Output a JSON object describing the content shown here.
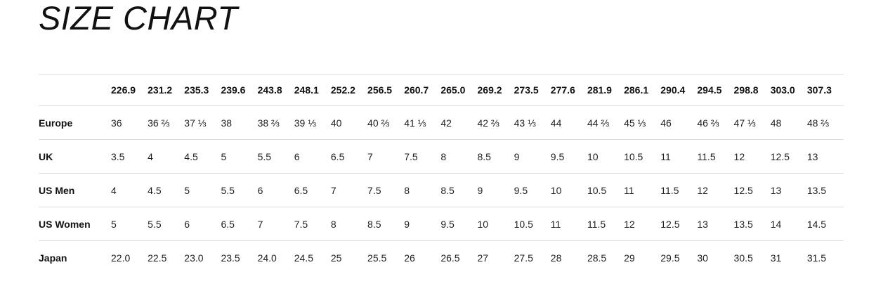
{
  "page": {
    "title": "SIZE CHART"
  },
  "table": {
    "corner_label": "",
    "columns": [
      "226.9",
      "231.2",
      "235.3",
      "239.6",
      "243.8",
      "248.1",
      "252.2",
      "256.5",
      "260.7",
      "265.0",
      "269.2",
      "273.5",
      "277.6",
      "281.9",
      "286.1",
      "290.4",
      "294.5",
      "298.8",
      "303.0",
      "307.3"
    ],
    "rows": [
      {
        "label": "Europe",
        "values": [
          "36",
          "36 ⅔",
          "37 ⅓",
          "38",
          "38 ⅔",
          "39 ⅓",
          "40",
          "40 ⅔",
          "41 ⅓",
          "42",
          "42 ⅔",
          "43 ⅓",
          "44",
          "44 ⅔",
          "45 ⅓",
          "46",
          "46 ⅔",
          "47 ⅓",
          "48",
          "48 ⅔"
        ]
      },
      {
        "label": "UK",
        "values": [
          "3.5",
          "4",
          "4.5",
          "5",
          "5.5",
          "6",
          "6.5",
          "7",
          "7.5",
          "8",
          "8.5",
          "9",
          "9.5",
          "10",
          "10.5",
          "11",
          "11.5",
          "12",
          "12.5",
          "13"
        ]
      },
      {
        "label": "US Men",
        "values": [
          "4",
          "4.5",
          "5",
          "5.5",
          "6",
          "6.5",
          "7",
          "7.5",
          "8",
          "8.5",
          "9",
          "9.5",
          "10",
          "10.5",
          "11",
          "11.5",
          "12",
          "12.5",
          "13",
          "13.5"
        ]
      },
      {
        "label": "US Women",
        "values": [
          "5",
          "5.5",
          "6",
          "6.5",
          "7",
          "7.5",
          "8",
          "8.5",
          "9",
          "9.5",
          "10",
          "10.5",
          "11",
          "11.5",
          "12",
          "12.5",
          "13",
          "13.5",
          "14",
          "14.5"
        ]
      },
      {
        "label": "Japan",
        "values": [
          "22.0",
          "22.5",
          "23.0",
          "23.5",
          "24.0",
          "24.5",
          "25",
          "25.5",
          "26",
          "26.5",
          "27",
          "27.5",
          "28",
          "28.5",
          "29",
          "29.5",
          "30",
          "30.5",
          "31",
          "31.5"
        ]
      }
    ]
  }
}
